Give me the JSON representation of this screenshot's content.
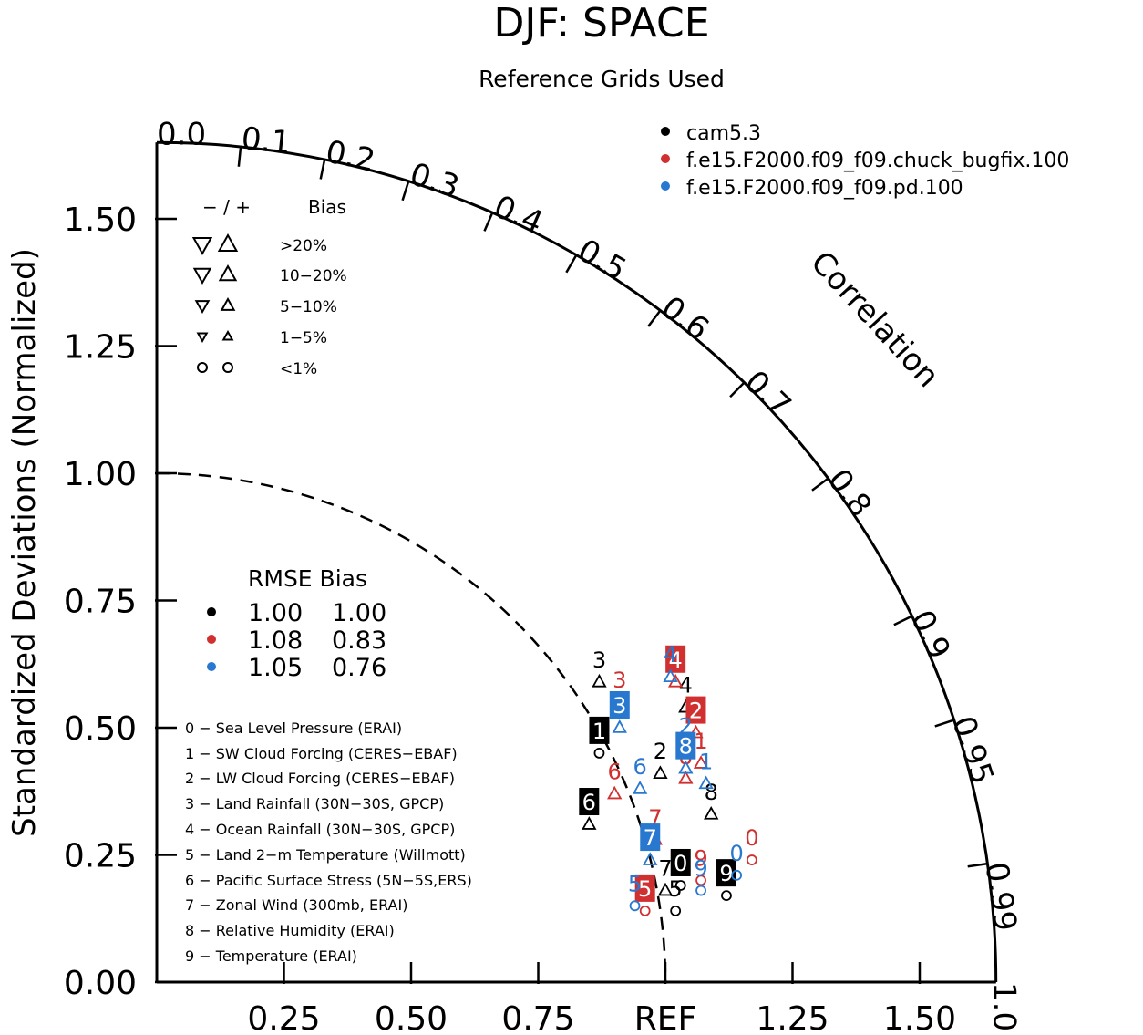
{
  "chart_data": {
    "type": "taylor",
    "title": "DJF: SPACE",
    "subtitle": "Reference Grids Used",
    "ylabel": "Standardized Deviations (Normalized)",
    "corr_label": "Correlation",
    "xlim": [
      0,
      1.65
    ],
    "ylim": [
      0,
      1.65
    ],
    "sd_ticks": [
      0.0,
      0.25,
      0.5,
      0.75,
      1.0,
      1.25,
      1.5
    ],
    "sd_tick_labels": [
      "0.00",
      "0.25",
      "0.50",
      "0.75",
      "1.00",
      "1.25",
      "1.50"
    ],
    "x_ticks": [
      0.25,
      0.5,
      0.75,
      1.0,
      1.25,
      1.5
    ],
    "x_tick_labels": [
      "0.25",
      "0.50",
      "0.75",
      "REF",
      "1.25",
      "1.50"
    ],
    "corr_ticks": [
      0.0,
      0.1,
      0.2,
      0.3,
      0.4,
      0.5,
      0.6,
      0.7,
      0.8,
      0.9,
      0.95,
      0.99,
      1.0
    ],
    "corr_tick_labels": [
      "0.0",
      "0.1",
      "0.2",
      "0.3",
      "0.4",
      "0.5",
      "0.6",
      "0.7",
      "0.8",
      "0.9",
      "0.95",
      "0.99",
      "1.0"
    ],
    "colors": {
      "cam5.3": "#000000",
      "chuck": "#d03030",
      "pd": "#2878d0"
    },
    "series": [
      {
        "name": "cam5.3",
        "color": "#000000"
      },
      {
        "name": "f.e15.F2000.f09_f09.chuck_bugfix.100",
        "color": "#d03030"
      },
      {
        "name": "f.e15.F2000.f09_f09.pd.100",
        "color": "#2878d0"
      }
    ],
    "bias_legend": {
      "header_sign": "− / +",
      "header_bias": "Bias",
      "rows": [
        "&gt;20%",
        "10−20%",
        "5−10%",
        "1−5%",
        "&lt;1%"
      ]
    },
    "rmse_legend": {
      "header": "RMSE Bias",
      "rows": [
        {
          "color": "#000000",
          "rmse": "1.00",
          "bias": "1.00"
        },
        {
          "color": "#d03030",
          "rmse": "1.08",
          "bias": "0.83"
        },
        {
          "color": "#2878d0",
          "rmse": "1.05",
          "bias": "0.76"
        }
      ]
    },
    "cases": [
      "0 − Sea Level Pressure (ERAI)",
      "1 − SW Cloud Forcing (CERES−EBAF)",
      "2 − LW Cloud Forcing (CERES−EBAF)",
      "3 − Land Rainfall (30N−30S, GPCP)",
      "4 − Ocean Rainfall (30N−30S, GPCP)",
      "5 − Land 2−m Temperature (Willmott)",
      "6 − Pacific Surface Stress (5N−5S,ERS)",
      "7 − Zonal Wind (300mb, ERAI)",
      "8 − Relative Humidity (ERAI)",
      "9 − Temperature (ERAI)"
    ],
    "points": [
      {
        "series": 0,
        "case": "0",
        "x": 1.03,
        "y": 0.19,
        "marker": "circle",
        "boxed": true
      },
      {
        "series": 0,
        "case": "1",
        "x": 0.87,
        "y": 0.45,
        "marker": "circle",
        "boxed": true
      },
      {
        "series": 0,
        "case": "2",
        "x": 0.99,
        "y": 0.41,
        "marker": "tri-up",
        "boxed": false
      },
      {
        "series": 0,
        "case": "3",
        "x": 0.87,
        "y": 0.59,
        "marker": "tri-up",
        "boxed": false
      },
      {
        "series": 0,
        "case": "4",
        "x": 1.04,
        "y": 0.54,
        "marker": "tri-up",
        "boxed": false
      },
      {
        "series": 0,
        "case": "5",
        "x": 1.02,
        "y": 0.14,
        "marker": "circle",
        "boxed": false
      },
      {
        "series": 0,
        "case": "6",
        "x": 0.85,
        "y": 0.31,
        "marker": "tri-up",
        "boxed": true
      },
      {
        "series": 0,
        "case": "7",
        "x": 1.0,
        "y": 0.18,
        "marker": "tri-up",
        "boxed": false
      },
      {
        "series": 0,
        "case": "8",
        "x": 1.09,
        "y": 0.33,
        "marker": "tri-up",
        "boxed": false
      },
      {
        "series": 0,
        "case": "9",
        "x": 1.12,
        "y": 0.17,
        "marker": "circle",
        "boxed": true
      },
      {
        "series": 1,
        "case": "0",
        "x": 1.17,
        "y": 0.24,
        "marker": "circle",
        "boxed": false
      },
      {
        "series": 1,
        "case": "1",
        "x": 1.07,
        "y": 0.43,
        "marker": "tri-up",
        "boxed": false
      },
      {
        "series": 1,
        "case": "2",
        "x": 1.06,
        "y": 0.49,
        "marker": "tri-up",
        "boxed": true
      },
      {
        "series": 1,
        "case": "3",
        "x": 0.91,
        "y": 0.55,
        "marker": "tri-up",
        "boxed": false
      },
      {
        "series": 1,
        "case": "4",
        "x": 1.02,
        "y": 0.59,
        "marker": "tri-up",
        "boxed": true
      },
      {
        "series": 1,
        "case": "5",
        "x": 0.96,
        "y": 0.14,
        "marker": "circle",
        "boxed": true
      },
      {
        "series": 1,
        "case": "6",
        "x": 0.9,
        "y": 0.37,
        "marker": "tri-up",
        "boxed": false
      },
      {
        "series": 1,
        "case": "7",
        "x": 0.98,
        "y": 0.28,
        "marker": "tri-up",
        "boxed": false
      },
      {
        "series": 1,
        "case": "8",
        "x": 1.04,
        "y": 0.4,
        "marker": "tri-up",
        "boxed": false
      },
      {
        "series": 1,
        "case": "9",
        "x": 1.07,
        "y": 0.2,
        "marker": "circle",
        "boxed": false
      },
      {
        "series": 2,
        "case": "0",
        "x": 1.14,
        "y": 0.21,
        "marker": "circle",
        "boxed": false
      },
      {
        "series": 2,
        "case": "1",
        "x": 1.08,
        "y": 0.39,
        "marker": "tri-up",
        "boxed": false
      },
      {
        "series": 2,
        "case": "2",
        "x": 1.04,
        "y": 0.46,
        "marker": "tri-up",
        "boxed": false
      },
      {
        "series": 2,
        "case": "3",
        "x": 0.91,
        "y": 0.5,
        "marker": "tri-up",
        "boxed": true
      },
      {
        "series": 2,
        "case": "4",
        "x": 1.01,
        "y": 0.6,
        "marker": "tri-up",
        "boxed": false
      },
      {
        "series": 2,
        "case": "5",
        "x": 0.94,
        "y": 0.15,
        "marker": "circle",
        "boxed": false
      },
      {
        "series": 2,
        "case": "6",
        "x": 0.95,
        "y": 0.38,
        "marker": "tri-up",
        "boxed": false
      },
      {
        "series": 2,
        "case": "7",
        "x": 0.97,
        "y": 0.24,
        "marker": "tri-up",
        "boxed": true
      },
      {
        "series": 2,
        "case": "8",
        "x": 1.04,
        "y": 0.42,
        "marker": "tri-up",
        "boxed": true
      },
      {
        "series": 2,
        "case": "9",
        "x": 1.07,
        "y": 0.18,
        "marker": "circle",
        "boxed": false
      }
    ]
  }
}
